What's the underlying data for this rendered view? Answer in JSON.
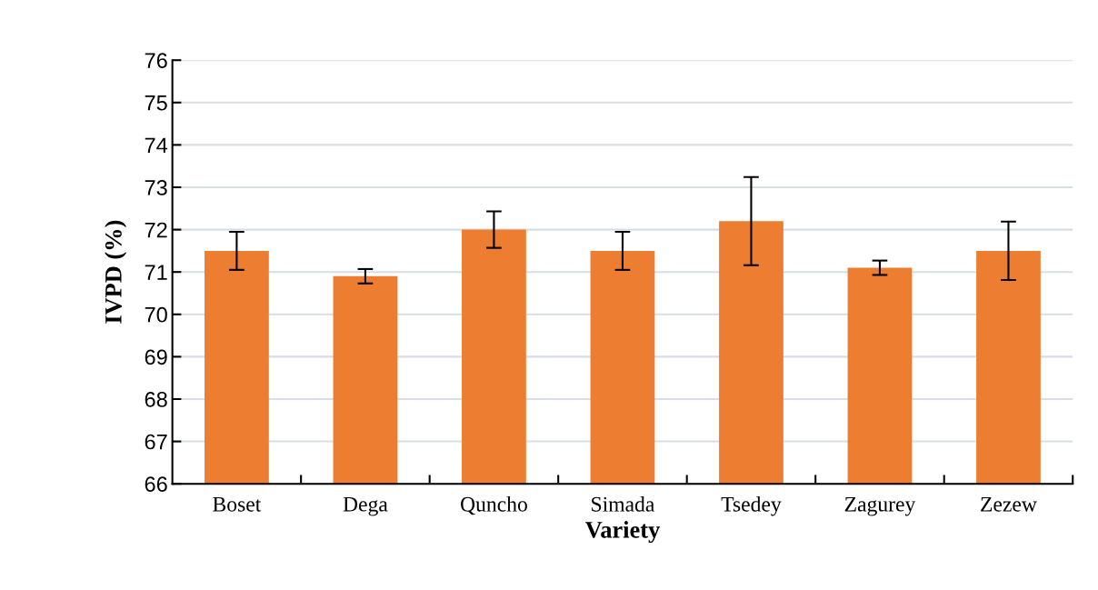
{
  "chart_data": {
    "type": "bar",
    "xlabel": "Variety",
    "ylabel": "IVPD (%)",
    "categories": [
      "Boset",
      "Dega",
      "Quncho",
      "Simada",
      "Tsedey",
      "Zagurey",
      "Zezew"
    ],
    "values": [
      71.5,
      70.9,
      72.0,
      71.5,
      72.2,
      71.1,
      71.5
    ],
    "errors": [
      0.45,
      0.17,
      0.43,
      0.45,
      1.04,
      0.17,
      0.69
    ],
    "color": "#ed7d31",
    "ylim": [
      66,
      76
    ],
    "yticks": [
      66,
      67,
      68,
      69,
      70,
      71,
      72,
      73,
      74,
      75,
      76
    ],
    "grid": "y",
    "legend": false
  }
}
